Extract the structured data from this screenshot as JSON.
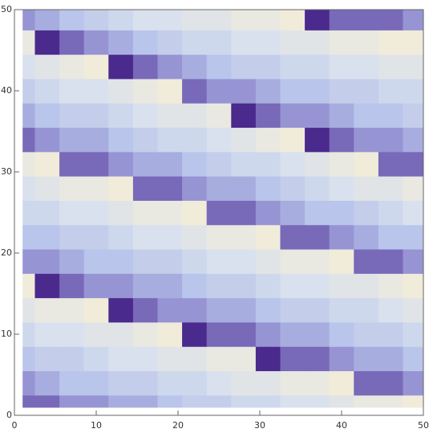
{
  "chart_data": {
    "type": "heatmap",
    "x": [
      1,
      4,
      7,
      10,
      13,
      16,
      19,
      22,
      25,
      28,
      31,
      34,
      37,
      40,
      43,
      46,
      49
    ],
    "y": [
      1,
      4,
      7,
      10,
      13,
      16,
      19,
      22,
      25,
      28,
      31,
      34,
      37,
      40,
      43,
      46,
      49
    ],
    "z": [
      [
        0.1,
        0.1,
        0.2,
        0.2,
        0.3,
        0.3,
        0.4,
        0.5,
        0.5,
        0.6,
        0.6,
        0.7,
        0.7,
        0.8,
        0.9,
        0.9,
        1
      ],
      [
        0.2,
        0.3,
        0.4,
        0.4,
        0.5,
        0.5,
        0.6,
        0.6,
        0.7,
        0.8,
        0.8,
        0.9,
        0.9,
        1,
        0.1,
        0.1,
        0.2
      ],
      [
        0.4,
        0.5,
        0.5,
        0.6,
        0.7,
        0.7,
        0.8,
        0.8,
        0.9,
        0.9,
        0,
        0.1,
        0.1,
        0.2,
        0.3,
        0.3,
        0.4
      ],
      [
        0.6,
        0.7,
        0.7,
        0.8,
        0.8,
        0.9,
        1,
        0,
        0.1,
        0.1,
        0.2,
        0.3,
        0.3,
        0.4,
        0.5,
        0.5,
        0.6
      ],
      [
        0.8,
        0.9,
        0.9,
        1,
        0,
        0.1,
        0.2,
        0.2,
        0.3,
        0.3,
        0.4,
        0.5,
        0.5,
        0.6,
        0.6,
        0.7,
        0.8
      ],
      [
        1,
        0,
        0.1,
        0.2,
        0.2,
        0.3,
        0.3,
        0.4,
        0.5,
        0.5,
        0.6,
        0.7,
        0.7,
        0.8,
        0.8,
        0.9,
        1
      ],
      [
        0.2,
        0.2,
        0.3,
        0.4,
        0.4,
        0.5,
        0.5,
        0.6,
        0.7,
        0.7,
        0.8,
        0.9,
        0.9,
        1,
        0.1,
        0.1,
        0.2
      ],
      [
        0.4,
        0.4,
        0.5,
        0.5,
        0.6,
        0.7,
        0.7,
        0.8,
        0.9,
        0.9,
        1,
        0.1,
        0.1,
        0.2,
        0.3,
        0.4,
        0.4
      ],
      [
        0.6,
        0.6,
        0.7,
        0.7,
        0.8,
        0.9,
        0.9,
        1,
        0.1,
        0.1,
        0.2,
        0.3,
        0.4,
        0.4,
        0.5,
        0.6,
        0.7
      ],
      [
        0.7,
        0.8,
        0.9,
        0.9,
        1,
        0.1,
        0.1,
        0.2,
        0.3,
        0.3,
        0.4,
        0.5,
        0.6,
        0.7,
        0.8,
        0.8,
        0.9
      ],
      [
        0.9,
        1,
        0.1,
        0.1,
        0.2,
        0.3,
        0.3,
        0.4,
        0.5,
        0.6,
        0.6,
        0.7,
        0.8,
        0.9,
        1,
        0.1,
        0.1
      ],
      [
        0.1,
        0.2,
        0.3,
        0.3,
        0.4,
        0.5,
        0.6,
        0.6,
        0.7,
        0.8,
        0.9,
        1,
        0,
        0.1,
        0.2,
        0.2,
        0.3
      ],
      [
        0.3,
        0.4,
        0.5,
        0.5,
        0.6,
        0.7,
        0.8,
        0.8,
        0.9,
        0,
        0.1,
        0.2,
        0.2,
        0.3,
        0.4,
        0.4,
        0.5
      ],
      [
        0.5,
        0.6,
        0.7,
        0.7,
        0.8,
        0.9,
        1,
        0.1,
        0.2,
        0.2,
        0.3,
        0.4,
        0.4,
        0.5,
        0.5,
        0.6,
        0.6
      ],
      [
        0.7,
        0.8,
        0.9,
        1,
        0,
        0.1,
        0.2,
        0.3,
        0.4,
        0.5,
        0.5,
        0.6,
        0.6,
        0.7,
        0.7,
        0.8,
        0.8
      ],
      [
        0.9,
        0,
        0.1,
        0.2,
        0.3,
        0.4,
        0.5,
        0.6,
        0.6,
        0.7,
        0.7,
        0.8,
        0.8,
        0.9,
        0.9,
        1,
        1
      ],
      [
        0.2,
        0.3,
        0.4,
        0.5,
        0.6,
        0.7,
        0.7,
        0.8,
        0.8,
        0.9,
        0.9,
        1,
        0,
        0.1,
        0.1,
        0.1,
        0.2
      ]
    ],
    "colorscale": [
      [
        0,
        "#4a2a8c"
      ],
      [
        0.15,
        "#8f88cf"
      ],
      [
        0.4,
        "#b9c5ea"
      ],
      [
        0.7,
        "#d9e1ee"
      ],
      [
        1,
        "#f1ebda"
      ]
    ],
    "xlim": [
      0,
      50
    ],
    "ylim": [
      0,
      50
    ],
    "xticks": [
      0,
      10,
      20,
      30,
      40,
      50
    ],
    "yticks": [
      0,
      10,
      20,
      30,
      40,
      50
    ]
  }
}
